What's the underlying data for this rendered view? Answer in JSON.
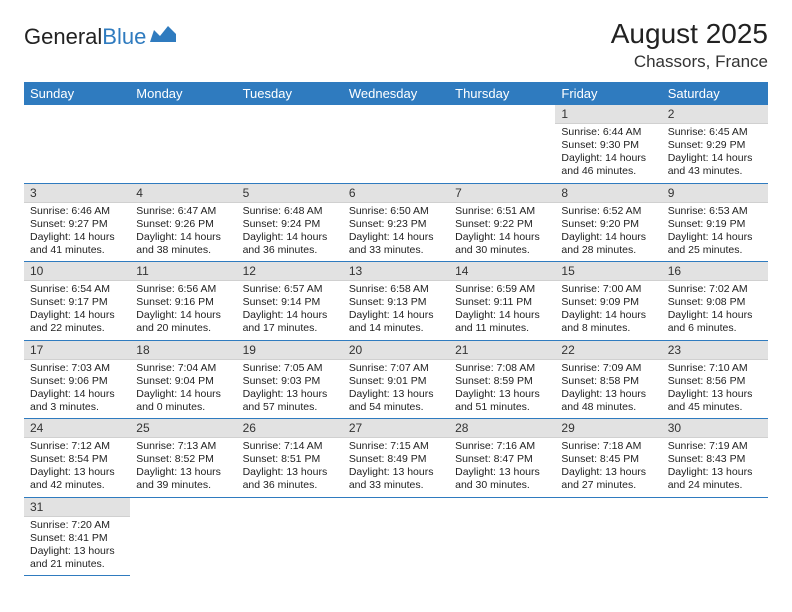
{
  "logo": {
    "text1": "General",
    "text2": "Blue"
  },
  "header": {
    "title": "August 2025",
    "location": "Chassors, France"
  },
  "colors": {
    "header_bg": "#2f7bbf",
    "header_text": "#ffffff",
    "daynum_bg": "#e2e2e2",
    "row_border": "#2f7bbf",
    "brand_blue": "#2f7bbf"
  },
  "days_of_week": [
    "Sunday",
    "Monday",
    "Tuesday",
    "Wednesday",
    "Thursday",
    "Friday",
    "Saturday"
  ],
  "cells": [
    {
      "n": "",
      "sr": "",
      "ss": "",
      "dl": ""
    },
    {
      "n": "",
      "sr": "",
      "ss": "",
      "dl": ""
    },
    {
      "n": "",
      "sr": "",
      "ss": "",
      "dl": ""
    },
    {
      "n": "",
      "sr": "",
      "ss": "",
      "dl": ""
    },
    {
      "n": "",
      "sr": "",
      "ss": "",
      "dl": ""
    },
    {
      "n": "1",
      "sr": "Sunrise: 6:44 AM",
      "ss": "Sunset: 9:30 PM",
      "dl": "Daylight: 14 hours and 46 minutes."
    },
    {
      "n": "2",
      "sr": "Sunrise: 6:45 AM",
      "ss": "Sunset: 9:29 PM",
      "dl": "Daylight: 14 hours and 43 minutes."
    },
    {
      "n": "3",
      "sr": "Sunrise: 6:46 AM",
      "ss": "Sunset: 9:27 PM",
      "dl": "Daylight: 14 hours and 41 minutes."
    },
    {
      "n": "4",
      "sr": "Sunrise: 6:47 AM",
      "ss": "Sunset: 9:26 PM",
      "dl": "Daylight: 14 hours and 38 minutes."
    },
    {
      "n": "5",
      "sr": "Sunrise: 6:48 AM",
      "ss": "Sunset: 9:24 PM",
      "dl": "Daylight: 14 hours and 36 minutes."
    },
    {
      "n": "6",
      "sr": "Sunrise: 6:50 AM",
      "ss": "Sunset: 9:23 PM",
      "dl": "Daylight: 14 hours and 33 minutes."
    },
    {
      "n": "7",
      "sr": "Sunrise: 6:51 AM",
      "ss": "Sunset: 9:22 PM",
      "dl": "Daylight: 14 hours and 30 minutes."
    },
    {
      "n": "8",
      "sr": "Sunrise: 6:52 AM",
      "ss": "Sunset: 9:20 PM",
      "dl": "Daylight: 14 hours and 28 minutes."
    },
    {
      "n": "9",
      "sr": "Sunrise: 6:53 AM",
      "ss": "Sunset: 9:19 PM",
      "dl": "Daylight: 14 hours and 25 minutes."
    },
    {
      "n": "10",
      "sr": "Sunrise: 6:54 AM",
      "ss": "Sunset: 9:17 PM",
      "dl": "Daylight: 14 hours and 22 minutes."
    },
    {
      "n": "11",
      "sr": "Sunrise: 6:56 AM",
      "ss": "Sunset: 9:16 PM",
      "dl": "Daylight: 14 hours and 20 minutes."
    },
    {
      "n": "12",
      "sr": "Sunrise: 6:57 AM",
      "ss": "Sunset: 9:14 PM",
      "dl": "Daylight: 14 hours and 17 minutes."
    },
    {
      "n": "13",
      "sr": "Sunrise: 6:58 AM",
      "ss": "Sunset: 9:13 PM",
      "dl": "Daylight: 14 hours and 14 minutes."
    },
    {
      "n": "14",
      "sr": "Sunrise: 6:59 AM",
      "ss": "Sunset: 9:11 PM",
      "dl": "Daylight: 14 hours and 11 minutes."
    },
    {
      "n": "15",
      "sr": "Sunrise: 7:00 AM",
      "ss": "Sunset: 9:09 PM",
      "dl": "Daylight: 14 hours and 8 minutes."
    },
    {
      "n": "16",
      "sr": "Sunrise: 7:02 AM",
      "ss": "Sunset: 9:08 PM",
      "dl": "Daylight: 14 hours and 6 minutes."
    },
    {
      "n": "17",
      "sr": "Sunrise: 7:03 AM",
      "ss": "Sunset: 9:06 PM",
      "dl": "Daylight: 14 hours and 3 minutes."
    },
    {
      "n": "18",
      "sr": "Sunrise: 7:04 AM",
      "ss": "Sunset: 9:04 PM",
      "dl": "Daylight: 14 hours and 0 minutes."
    },
    {
      "n": "19",
      "sr": "Sunrise: 7:05 AM",
      "ss": "Sunset: 9:03 PM",
      "dl": "Daylight: 13 hours and 57 minutes."
    },
    {
      "n": "20",
      "sr": "Sunrise: 7:07 AM",
      "ss": "Sunset: 9:01 PM",
      "dl": "Daylight: 13 hours and 54 minutes."
    },
    {
      "n": "21",
      "sr": "Sunrise: 7:08 AM",
      "ss": "Sunset: 8:59 PM",
      "dl": "Daylight: 13 hours and 51 minutes."
    },
    {
      "n": "22",
      "sr": "Sunrise: 7:09 AM",
      "ss": "Sunset: 8:58 PM",
      "dl": "Daylight: 13 hours and 48 minutes."
    },
    {
      "n": "23",
      "sr": "Sunrise: 7:10 AM",
      "ss": "Sunset: 8:56 PM",
      "dl": "Daylight: 13 hours and 45 minutes."
    },
    {
      "n": "24",
      "sr": "Sunrise: 7:12 AM",
      "ss": "Sunset: 8:54 PM",
      "dl": "Daylight: 13 hours and 42 minutes."
    },
    {
      "n": "25",
      "sr": "Sunrise: 7:13 AM",
      "ss": "Sunset: 8:52 PM",
      "dl": "Daylight: 13 hours and 39 minutes."
    },
    {
      "n": "26",
      "sr": "Sunrise: 7:14 AM",
      "ss": "Sunset: 8:51 PM",
      "dl": "Daylight: 13 hours and 36 minutes."
    },
    {
      "n": "27",
      "sr": "Sunrise: 7:15 AM",
      "ss": "Sunset: 8:49 PM",
      "dl": "Daylight: 13 hours and 33 minutes."
    },
    {
      "n": "28",
      "sr": "Sunrise: 7:16 AM",
      "ss": "Sunset: 8:47 PM",
      "dl": "Daylight: 13 hours and 30 minutes."
    },
    {
      "n": "29",
      "sr": "Sunrise: 7:18 AM",
      "ss": "Sunset: 8:45 PM",
      "dl": "Daylight: 13 hours and 27 minutes."
    },
    {
      "n": "30",
      "sr": "Sunrise: 7:19 AM",
      "ss": "Sunset: 8:43 PM",
      "dl": "Daylight: 13 hours and 24 minutes."
    },
    {
      "n": "31",
      "sr": "Sunrise: 7:20 AM",
      "ss": "Sunset: 8:41 PM",
      "dl": "Daylight: 13 hours and 21 minutes."
    },
    {
      "n": "",
      "sr": "",
      "ss": "",
      "dl": ""
    },
    {
      "n": "",
      "sr": "",
      "ss": "",
      "dl": ""
    },
    {
      "n": "",
      "sr": "",
      "ss": "",
      "dl": ""
    },
    {
      "n": "",
      "sr": "",
      "ss": "",
      "dl": ""
    },
    {
      "n": "",
      "sr": "",
      "ss": "",
      "dl": ""
    },
    {
      "n": "",
      "sr": "",
      "ss": "",
      "dl": ""
    }
  ]
}
